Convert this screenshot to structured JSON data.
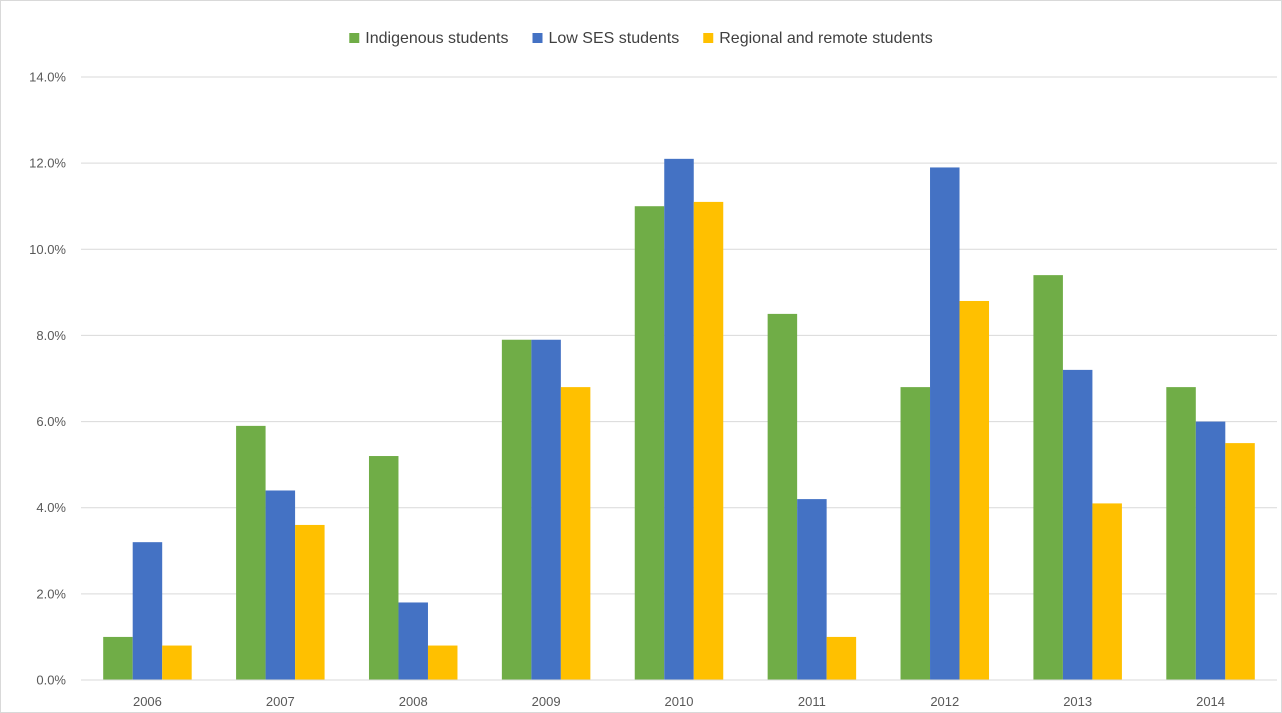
{
  "chart_data": {
    "type": "bar",
    "title": "",
    "xlabel": "",
    "ylabel": "",
    "categories": [
      "2006",
      "2007",
      "2008",
      "2009",
      "2010",
      "2011",
      "2012",
      "2013",
      "2014"
    ],
    "series": [
      {
        "name": "Indigenous students",
        "color": "#70ad47",
        "values": [
          1.0,
          5.9,
          5.2,
          7.9,
          11.0,
          8.5,
          6.8,
          9.4,
          6.8
        ]
      },
      {
        "name": "Low SES students",
        "color": "#4472c4",
        "values": [
          3.2,
          4.4,
          1.8,
          7.9,
          12.1,
          4.2,
          11.9,
          7.2,
          6.0
        ]
      },
      {
        "name": "Regional and remote students",
        "color": "#ffc000",
        "values": [
          0.8,
          3.6,
          0.8,
          6.8,
          11.1,
          1.0,
          8.8,
          4.1,
          5.5
        ]
      }
    ],
    "ylim": [
      0,
      14
    ],
    "yticks": [
      0,
      2,
      4,
      6,
      8,
      10,
      12,
      14
    ],
    "ytick_labels": [
      "0.0%",
      "2.0%",
      "4.0%",
      "6.0%",
      "8.0%",
      "10.0%",
      "12.0%",
      "14.0%"
    ],
    "grid": true,
    "legend_position": "top"
  }
}
